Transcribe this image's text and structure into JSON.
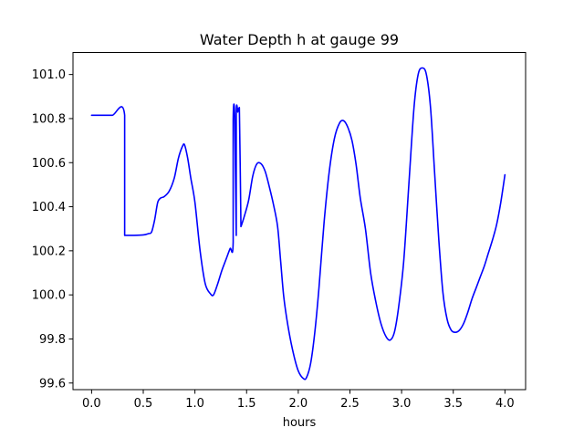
{
  "chart_data": {
    "type": "line",
    "title": "Water Depth h at gauge 99",
    "xlabel": "hours",
    "ylabel": "",
    "xlim": [
      -0.18,
      4.2
    ],
    "ylim": [
      99.57,
      101.1
    ],
    "x_ticks": [
      0.0,
      0.5,
      1.0,
      1.5,
      2.0,
      2.5,
      3.0,
      3.5,
      4.0
    ],
    "x_tick_labels": [
      "0.0",
      "0.5",
      "1.0",
      "1.5",
      "2.0",
      "2.5",
      "3.0",
      "3.5",
      "4.0"
    ],
    "y_ticks": [
      99.6,
      99.8,
      100.0,
      100.2,
      100.4,
      100.6,
      100.8,
      101.0
    ],
    "y_tick_labels": [
      "99.6",
      "99.8",
      "100.0",
      "100.2",
      "100.4",
      "100.6",
      "100.8",
      "101.0"
    ],
    "grid": false,
    "legend": "none",
    "series_color": "#0000ff",
    "series": [
      {
        "x": [
          0.0,
          0.1,
          0.2,
          0.32,
          0.32,
          0.33,
          0.4,
          0.5,
          0.55,
          0.58,
          0.61,
          0.64,
          0.67,
          0.7,
          0.75,
          0.8,
          0.84,
          0.88,
          0.9,
          0.93,
          0.96,
          1.0,
          1.05,
          1.1,
          1.15,
          1.18,
          1.22,
          1.26,
          1.3,
          1.34,
          1.37,
          1.37,
          1.385,
          1.4,
          1.4,
          1.415,
          1.42,
          1.43,
          1.445,
          1.445,
          1.46,
          1.48,
          1.52,
          1.56,
          1.6,
          1.64,
          1.68,
          1.72,
          1.76,
          1.8,
          1.83,
          1.86,
          1.9,
          1.95,
          2.0,
          2.05,
          2.08,
          2.12,
          2.16,
          2.2,
          2.25,
          2.3,
          2.35,
          2.4,
          2.44,
          2.48,
          2.52,
          2.56,
          2.6,
          2.65,
          2.7,
          2.75,
          2.8,
          2.85,
          2.89,
          2.93,
          2.97,
          3.02,
          3.07,
          3.12,
          3.16,
          3.2,
          3.24,
          3.28,
          3.32,
          3.36,
          3.4,
          3.44,
          3.48,
          3.52,
          3.56,
          3.6,
          3.64,
          3.68,
          3.72,
          3.76,
          3.8,
          3.84,
          3.88,
          3.92,
          3.96,
          4.0
        ],
        "y": [
          100.815,
          100.815,
          100.815,
          100.815,
          100.27,
          100.27,
          100.27,
          100.272,
          100.278,
          100.285,
          100.34,
          100.42,
          100.44,
          100.445,
          100.47,
          100.53,
          100.62,
          100.675,
          100.68,
          100.62,
          100.53,
          100.42,
          100.2,
          100.05,
          100.005,
          100.0,
          100.05,
          100.11,
          100.16,
          100.21,
          100.24,
          100.79,
          100.81,
          100.27,
          100.82,
          100.83,
          100.845,
          100.85,
          100.32,
          100.31,
          100.33,
          100.36,
          100.43,
          100.54,
          100.595,
          100.595,
          100.56,
          100.49,
          100.41,
          100.31,
          100.15,
          99.99,
          99.86,
          99.74,
          99.655,
          99.62,
          99.625,
          99.69,
          99.83,
          100.03,
          100.33,
          100.56,
          100.71,
          100.78,
          100.79,
          100.76,
          100.7,
          100.59,
          100.44,
          100.3,
          100.1,
          99.97,
          99.87,
          99.81,
          99.795,
          99.83,
          99.94,
          100.15,
          100.5,
          100.85,
          101.0,
          101.03,
          101.0,
          100.85,
          100.55,
          100.25,
          100.01,
          99.89,
          99.84,
          99.83,
          99.84,
          99.87,
          99.92,
          99.98,
          100.03,
          100.08,
          100.13,
          100.19,
          100.25,
          100.32,
          100.42,
          100.545
        ]
      }
    ]
  }
}
